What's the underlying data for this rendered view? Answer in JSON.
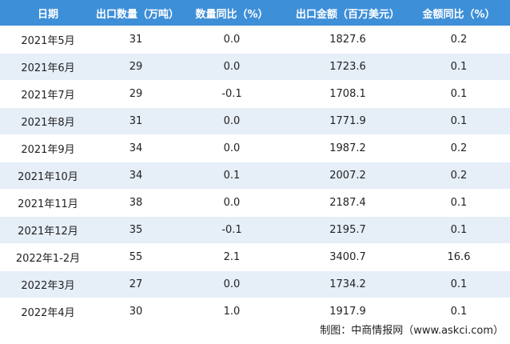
{
  "table": {
    "header": [
      "日期",
      "出口数量（万吨）",
      "数量同比（%）",
      "出口金额（百万美元）",
      "金额同比（%）"
    ],
    "rows": [
      [
        "2021年5月",
        "31",
        "0.0",
        "1827.6",
        "0.2"
      ],
      [
        "2021年6月",
        "29",
        "0.0",
        "1723.6",
        "0.1"
      ],
      [
        "2021年7月",
        "29",
        "-0.1",
        "1708.1",
        "0.1"
      ],
      [
        "2021年8月",
        "31",
        "0.0",
        "1771.9",
        "0.1"
      ],
      [
        "2021年9月",
        "34",
        "0.0",
        "1987.2",
        "0.2"
      ],
      [
        "2021年10月",
        "34",
        "0.1",
        "2007.2",
        "0.2"
      ],
      [
        "2021年11月",
        "38",
        "0.0",
        "2187.4",
        "0.1"
      ],
      [
        "2021年12月",
        "35",
        "-0.1",
        "2195.7",
        "0.1"
      ],
      [
        "2022年1-2月",
        "55",
        "2.1",
        "3400.7",
        "16.6"
      ],
      [
        "2022年3月",
        "27",
        "0.0",
        "1734.2",
        "0.1"
      ],
      [
        "2022年4月",
        "30",
        "1.0",
        "1917.9",
        "0.1"
      ]
    ]
  },
  "footer": {
    "source": "制图：中商情报网（www.askci.com）"
  }
}
